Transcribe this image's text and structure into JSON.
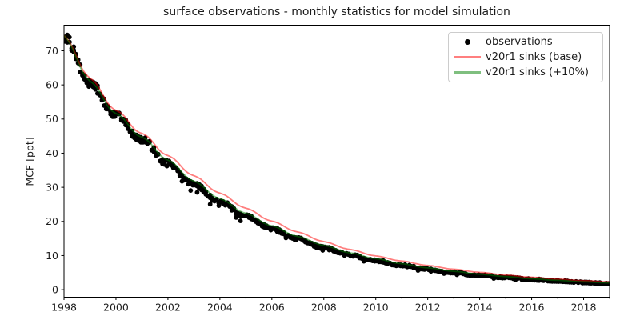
{
  "chart_data": {
    "type": "scatter+line",
    "title": "surface observations - monthly statistics for model simulation",
    "xlabel": "",
    "ylabel": "MCF [ppt]",
    "x_unit": "year",
    "years": [
      1998,
      1999,
      2000,
      2001,
      2002,
      2003,
      2004,
      2005,
      2006,
      2007,
      2008,
      2009,
      2010,
      2011,
      2012,
      2013,
      2014,
      2015,
      2016,
      2017,
      2018,
      2019
    ],
    "series": [
      {
        "name": "observations",
        "plot": "scatter",
        "marker": "dot",
        "color": "#000000",
        "alpha": 1.0,
        "values_at_years": [
          74.5,
          60.5,
          51.0,
          44.0,
          37.0,
          30.8,
          25.8,
          21.5,
          17.9,
          14.9,
          12.3,
          10.2,
          8.5,
          7.1,
          6.0,
          5.0,
          4.2,
          3.55,
          3.0,
          2.55,
          2.15,
          1.85
        ]
      },
      {
        "name": "v20r1 sinks (base)",
        "plot": "line",
        "color": "#ff0000",
        "alpha": 0.5,
        "values_at_years": [
          74.5,
          62.0,
          52.5,
          45.8,
          39.3,
          33.4,
          28.3,
          23.9,
          20.1,
          16.9,
          14.1,
          11.8,
          9.9,
          8.4,
          7.1,
          6.0,
          5.1,
          4.3,
          3.65,
          3.1,
          2.65,
          2.3
        ]
      },
      {
        "name": "v20r1 sinks (+10%)",
        "plot": "line",
        "color": "#008000",
        "alpha": 0.5,
        "values_at_years": [
          74.5,
          61.1,
          51.6,
          44.7,
          38.0,
          31.8,
          26.7,
          22.4,
          18.7,
          15.6,
          13.0,
          10.8,
          9.1,
          7.6,
          6.4,
          5.4,
          4.55,
          3.85,
          3.2,
          2.75,
          2.3,
          2.0
        ]
      }
    ],
    "xlim": [
      1998,
      2019
    ],
    "ylim": [
      -2.2,
      77.5
    ],
    "xticks_major": [
      1998,
      2000,
      2002,
      2004,
      2006,
      2008,
      2010,
      2012,
      2014,
      2016,
      2018
    ],
    "xticks_minor": [
      1999,
      2001,
      2003,
      2005,
      2007,
      2009,
      2011,
      2013,
      2015,
      2017,
      2019
    ],
    "yticks": [
      0,
      10,
      20,
      30,
      40,
      50,
      60,
      70
    ],
    "grid": false,
    "legend_position": "upper right",
    "sampling": "monthly",
    "seasonal_wiggle_amplitude_fraction": 0.013
  }
}
